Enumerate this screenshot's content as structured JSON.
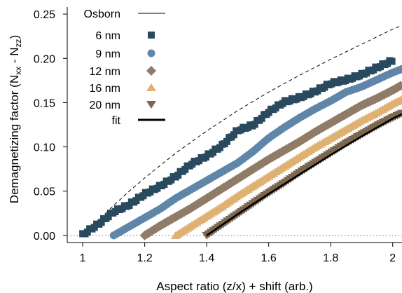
{
  "chart_data": {
    "type": "scatter",
    "xlabel": "Aspect ratio (z/x) + shift (arb.)",
    "ylabel_main": "Demagnetizing factor (N",
    "ylabel_sub1": "xx",
    "ylabel_mid": " - N",
    "ylabel_sub2": "zz",
    "ylabel_end": ")",
    "xlim": [
      0.95,
      2.03
    ],
    "ylim": [
      -0.008,
      0.258
    ],
    "xticks": [
      1,
      1.2,
      1.4,
      1.6,
      1.8,
      2
    ],
    "xtick_labels": [
      "1",
      "1.2",
      "1.4",
      "1.6",
      "1.8",
      "2"
    ],
    "yticks": [
      0,
      0.05,
      0.1,
      0.15,
      0.2,
      0.25
    ],
    "ytick_labels": [
      "0.00",
      "0.05",
      "0.10",
      "0.15",
      "0.20",
      "0.25"
    ],
    "legend_position": "top-left",
    "reference_zero_line": "dotted",
    "osborn": {
      "name": "Osborn",
      "style": "dashed",
      "x": [
        1.0,
        1.05,
        1.1,
        1.15,
        1.2,
        1.3,
        1.4,
        1.5,
        1.6,
        1.7,
        1.8,
        1.9,
        2.0,
        2.03
      ],
      "y": [
        0.0,
        0.017,
        0.034,
        0.05,
        0.065,
        0.093,
        0.118,
        0.141,
        0.162,
        0.181,
        0.199,
        0.216,
        0.233,
        0.237
      ]
    },
    "series": [
      {
        "name": "6 nm",
        "marker": "square",
        "color": "#294a5e",
        "shift": 1.0,
        "x": [
          1.0,
          1.02,
          1.05,
          1.1,
          1.15,
          1.2,
          1.25,
          1.3,
          1.35,
          1.4,
          1.45,
          1.5,
          1.55,
          1.6,
          1.65,
          1.7,
          1.75,
          1.8,
          1.85,
          1.9,
          1.95,
          2.0
        ],
        "y": [
          0.0,
          0.005,
          0.012,
          0.026,
          0.034,
          0.046,
          0.055,
          0.066,
          0.08,
          0.089,
          0.101,
          0.118,
          0.124,
          0.139,
          0.15,
          0.155,
          0.162,
          0.171,
          0.175,
          0.181,
          0.189,
          0.197
        ]
      },
      {
        "name": "9 nm",
        "marker": "circle",
        "color": "#5f86a8",
        "shift": 1.1,
        "x": [
          1.1,
          1.15,
          1.2,
          1.25,
          1.3,
          1.35,
          1.4,
          1.45,
          1.5,
          1.55,
          1.6,
          1.65,
          1.7,
          1.75,
          1.8,
          1.85,
          1.9,
          1.95,
          2.0,
          2.03
        ],
        "y": [
          0.0,
          0.01,
          0.02,
          0.03,
          0.042,
          0.052,
          0.062,
          0.072,
          0.082,
          0.095,
          0.11,
          0.122,
          0.133,
          0.143,
          0.152,
          0.162,
          0.168,
          0.176,
          0.184,
          0.188
        ]
      },
      {
        "name": "12 nm",
        "marker": "diamond",
        "color": "#8f7b66",
        "shift": 1.2,
        "x": [
          1.2,
          1.25,
          1.3,
          1.35,
          1.4,
          1.45,
          1.5,
          1.55,
          1.6,
          1.65,
          1.7,
          1.75,
          1.8,
          1.85,
          1.9,
          1.95,
          2.0,
          2.03
        ],
        "y": [
          0.0,
          0.011,
          0.021,
          0.031,
          0.042,
          0.053,
          0.064,
          0.075,
          0.086,
          0.096,
          0.106,
          0.117,
          0.127,
          0.137,
          0.147,
          0.155,
          0.164,
          0.17
        ]
      },
      {
        "name": "16 nm",
        "marker": "triangle-up",
        "color": "#deb072",
        "shift": 1.3,
        "x": [
          1.3,
          1.35,
          1.4,
          1.45,
          1.5,
          1.55,
          1.6,
          1.65,
          1.7,
          1.75,
          1.8,
          1.85,
          1.9,
          1.95,
          2.0,
          2.03
        ],
        "y": [
          0.0,
          0.011,
          0.022,
          0.033,
          0.045,
          0.056,
          0.067,
          0.078,
          0.089,
          0.1,
          0.11,
          0.12,
          0.13,
          0.139,
          0.149,
          0.154
        ]
      },
      {
        "name": "20 nm",
        "marker": "triangle-down",
        "color": "#7b6650",
        "shift": 1.4,
        "x": [
          1.4,
          1.45,
          1.5,
          1.55,
          1.6,
          1.65,
          1.7,
          1.75,
          1.8,
          1.85,
          1.9,
          1.95,
          2.0,
          2.03
        ],
        "y": [
          0.0,
          0.012,
          0.024,
          0.036,
          0.048,
          0.059,
          0.071,
          0.082,
          0.093,
          0.104,
          0.114,
          0.124,
          0.133,
          0.138
        ]
      }
    ],
    "fit": {
      "name": "fit",
      "style": "solid-thick",
      "x": [
        1.4,
        1.5,
        1.6,
        1.7,
        1.8,
        1.9,
        2.0,
        2.03
      ],
      "y": [
        0.0,
        0.024,
        0.047,
        0.069,
        0.091,
        0.112,
        0.132,
        0.137
      ]
    }
  }
}
